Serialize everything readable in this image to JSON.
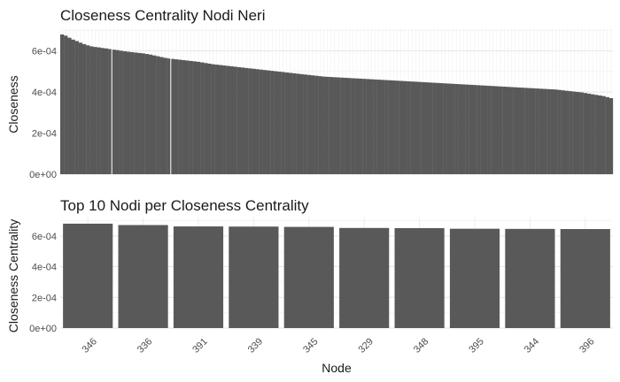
{
  "chart_data": [
    {
      "type": "bar",
      "title": "Closeness Centrality Nodi Neri",
      "xlabel": "",
      "ylabel": "Closeness",
      "ylim": [
        0,
        0.00071
      ],
      "yticks": [
        0,
        0.0002,
        0.0004,
        0.0006
      ],
      "ytick_labels": [
        "0e+00",
        "2e-04",
        "4e-04",
        "6e-04"
      ],
      "grid": true,
      "x_tick_labels_visible": false,
      "bar_color": "#595959",
      "values": [
        0.00068,
        0.000674,
        0.000664,
        0.000655,
        0.000648,
        0.00064,
        0.000633,
        0.000627,
        0.000622,
        0.000619,
        0.000617,
        0.000614,
        0.000612,
        0.000609,
        0.000606,
        0.000604,
        0.000601,
        0.000598,
        0.000596,
        0.000594,
        0.000592,
        0.00059,
        0.000588,
        0.000585,
        0.000582,
        0.000578,
        0.000574,
        0.00057,
        0.000566,
        0.000563,
        0.000561,
        0.000559,
        0.000557,
        0.000555,
        0.000553,
        0.000551,
        0.000549,
        0.000547,
        0.000544,
        0.000541,
        0.000538,
        0.000535,
        0.000533,
        0.000531,
        0.000529,
        0.000527,
        0.000525,
        0.000523,
        0.000521,
        0.000519,
        0.000517,
        0.000515,
        0.000513,
        0.000511,
        0.000509,
        0.000507,
        0.000505,
        0.000503,
        0.000501,
        0.000499,
        0.000497,
        0.000495,
        0.000493,
        0.000491,
        0.000489,
        0.000487,
        0.000485,
        0.000483,
        0.000481,
        0.000479,
        0.000477,
        0.000475,
        0.000474,
        0.000473,
        0.000472,
        0.000471,
        0.00047,
        0.000469,
        0.000468,
        0.000467,
        0.000466,
        0.000465,
        0.000464,
        0.000463,
        0.000462,
        0.000461,
        0.00046,
        0.000459,
        0.000458,
        0.000457,
        0.000456,
        0.000455,
        0.000454,
        0.000453,
        0.000452,
        0.000451,
        0.00045,
        0.000449,
        0.000448,
        0.000447,
        0.000446,
        0.000445,
        0.000444,
        0.000443,
        0.000442,
        0.000441,
        0.00044,
        0.000439,
        0.000438,
        0.000437,
        0.000436,
        0.000435,
        0.000434,
        0.000433,
        0.000432,
        0.000431,
        0.00043,
        0.000429,
        0.000428,
        0.000427,
        0.000426,
        0.000425,
        0.000424,
        0.000423,
        0.000422,
        0.000421,
        0.00042,
        0.000419,
        0.000418,
        0.000417,
        0.000416,
        0.000415,
        0.000414,
        0.000413,
        0.000412,
        0.00041,
        0.000408,
        0.000406,
        0.000404,
        0.000402,
        0.0004,
        0.000398,
        0.000395,
        0.000392,
        0.000389,
        0.000386,
        0.000383,
        0.00038,
        0.000375,
        0.00037
      ]
    },
    {
      "type": "bar",
      "title": "Top 10 Nodi per Closeness Centrality",
      "xlabel": "Node",
      "ylabel": "Closeness Centrality",
      "ylim": [
        0,
        0.00072
      ],
      "yticks": [
        0,
        0.0002,
        0.0004,
        0.0006
      ],
      "ytick_labels": [
        "0e+00",
        "2e-04",
        "4e-04",
        "6e-04"
      ],
      "grid": true,
      "bar_color": "#595959",
      "categories": [
        "346",
        "336",
        "391",
        "339",
        "345",
        "329",
        "348",
        "395",
        "344",
        "396"
      ],
      "values": [
        0.00068,
        0.000671,
        0.000662,
        0.000661,
        0.000659,
        0.000652,
        0.000651,
        0.000647,
        0.000646,
        0.000645
      ]
    }
  ]
}
